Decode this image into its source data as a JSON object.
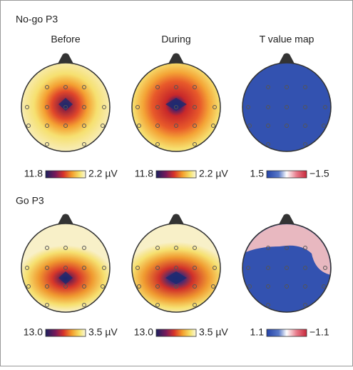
{
  "sections": [
    {
      "title": "No-go P3",
      "maps": [
        {
          "title": "Before",
          "scale_min": "11.8",
          "scale_max": "2.2 µV"
        },
        {
          "title": "During",
          "scale_min": "11.8",
          "scale_max": "2.2 µV"
        },
        {
          "title": "T value map",
          "scale_min": "1.5",
          "scale_max": "−1.5"
        }
      ]
    },
    {
      "title": "Go P3",
      "maps": [
        {
          "title": "",
          "scale_min": "13.0",
          "scale_max": "3.5 µV"
        },
        {
          "title": "",
          "scale_min": "13.0",
          "scale_max": "3.5 µV"
        },
        {
          "title": "",
          "scale_min": "1.1",
          "scale_max": "−1.1"
        }
      ]
    }
  ]
}
